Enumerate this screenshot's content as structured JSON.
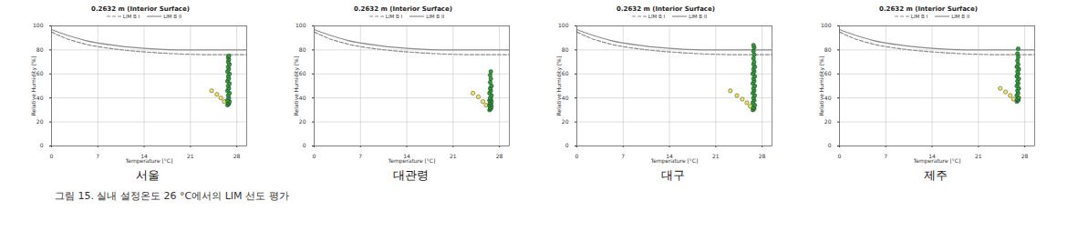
{
  "chart_data": [
    {
      "type": "scatter",
      "title": "0.2632 m (Interior Surface)",
      "caption": "서울",
      "x_label": "Temperature [°C]",
      "y_label": "Relative Humidity [%]",
      "xlim": [
        0,
        29.5
      ],
      "xticks": [
        0,
        7,
        14,
        21,
        28
      ],
      "ylim": [
        0,
        100
      ],
      "yticks": [
        0,
        20,
        40,
        60,
        80,
        100
      ],
      "grid": true,
      "legend": "top",
      "series": [
        {
          "name": "LIM B I",
          "type": "line",
          "line_style": "dashed",
          "color": "#8c8c8c",
          "x": [
            0,
            2,
            5,
            10,
            15,
            20,
            25,
            29.5
          ],
          "values": [
            95,
            90,
            85,
            80.5,
            78,
            76.5,
            76,
            76
          ]
        },
        {
          "name": "LIM B II",
          "type": "line",
          "line_style": "solid",
          "color": "#8c8c8c",
          "x": [
            0,
            2,
            5,
            10,
            15,
            20,
            25,
            29.5
          ],
          "values": [
            97,
            93,
            88,
            83.5,
            81,
            80,
            80,
            80
          ]
        },
        {
          "type": "scatter",
          "color": "#f2e35a",
          "x": [
            24.2,
            25.0,
            25.6,
            26.1
          ],
          "values": [
            46,
            43,
            40,
            37
          ]
        },
        {
          "type": "scatter",
          "color": "#2e9e3a",
          "x": [
            26.6,
            26.8,
            26.7,
            26.9,
            26.6,
            26.8,
            26.7,
            26.9,
            26.6,
            26.8,
            26.7,
            26.9,
            26.6,
            26.8,
            26.7,
            26.9,
            26.6,
            26.8,
            26.7,
            26.9,
            26.7,
            26.8,
            26.7,
            26.8
          ],
          "values": [
            34,
            35,
            36,
            37,
            38,
            40,
            42,
            44,
            46,
            48,
            50,
            52,
            54,
            56,
            58,
            60,
            62,
            64,
            66,
            68,
            70,
            72,
            74,
            75
          ]
        }
      ]
    },
    {
      "type": "scatter",
      "title": "0.2632 m (Interior Surface)",
      "caption": "대관령",
      "x_label": "Temperature [°C]",
      "y_label": "Relative Humidity [%]",
      "xlim": [
        0,
        29.5
      ],
      "xticks": [
        0,
        7,
        14,
        21,
        28
      ],
      "ylim": [
        0,
        100
      ],
      "yticks": [
        0,
        20,
        40,
        60,
        80,
        100
      ],
      "grid": true,
      "legend": "top",
      "series": [
        {
          "name": "LIM B I",
          "type": "line",
          "line_style": "dashed",
          "color": "#8c8c8c",
          "x": [
            0,
            2,
            5,
            10,
            15,
            20,
            25,
            29.5
          ],
          "values": [
            95,
            90,
            85,
            80.5,
            78,
            76.5,
            76,
            76
          ]
        },
        {
          "name": "LIM B II",
          "type": "line",
          "line_style": "solid",
          "color": "#8c8c8c",
          "x": [
            0,
            2,
            5,
            10,
            15,
            20,
            25,
            29.5
          ],
          "values": [
            97,
            93,
            88,
            83.5,
            81,
            80,
            80,
            80
          ]
        },
        {
          "type": "scatter",
          "color": "#f2e35a",
          "x": [
            24.0,
            24.8,
            25.5,
            26.0
          ],
          "values": [
            44,
            41,
            37,
            34
          ]
        },
        {
          "type": "scatter",
          "color": "#2e9e3a",
          "x": [
            26.5,
            26.7,
            26.6,
            26.8,
            26.5,
            26.7,
            26.6,
            26.8,
            26.5,
            26.7,
            26.6,
            26.8,
            26.5,
            26.7,
            26.6,
            26.8,
            26.6,
            26.7,
            26.6,
            26.7
          ],
          "values": [
            30,
            31,
            32,
            33,
            34,
            35,
            36,
            37,
            38,
            39,
            40,
            42,
            44,
            46,
            48,
            50,
            53,
            56,
            59,
            62
          ]
        }
      ]
    },
    {
      "type": "scatter",
      "title": "0.2632 m (Interior Surface)",
      "caption": "대구",
      "x_label": "Temperature [°C]",
      "y_label": "Relative Humidity [%]",
      "xlim": [
        0,
        29.5
      ],
      "xticks": [
        0,
        7,
        14,
        21,
        28
      ],
      "ylim": [
        0,
        100
      ],
      "yticks": [
        0,
        20,
        40,
        60,
        80,
        100
      ],
      "grid": true,
      "legend": "top",
      "series": [
        {
          "name": "LIM B I",
          "type": "line",
          "line_style": "dashed",
          "color": "#8c8c8c",
          "x": [
            0,
            2,
            5,
            10,
            15,
            20,
            25,
            29.5
          ],
          "values": [
            95,
            90,
            85,
            80.5,
            78,
            76.5,
            76,
            76
          ]
        },
        {
          "name": "LIM B II",
          "type": "line",
          "line_style": "solid",
          "color": "#8c8c8c",
          "x": [
            0,
            2,
            5,
            10,
            15,
            20,
            25,
            29.5
          ],
          "values": [
            97,
            93,
            88,
            83.5,
            81,
            80,
            80,
            80
          ]
        },
        {
          "type": "scatter",
          "color": "#f2e35a",
          "x": [
            23.2,
            24.2,
            25.0,
            25.7,
            26.2
          ],
          "values": [
            46,
            42,
            39,
            36,
            33
          ]
        },
        {
          "type": "scatter",
          "color": "#2e9e3a",
          "x": [
            26.6,
            26.8,
            26.7,
            26.9,
            26.6,
            26.8,
            26.7,
            26.9,
            26.6,
            26.8,
            26.7,
            26.9,
            26.6,
            26.8,
            26.7,
            26.9,
            26.6,
            26.8,
            26.7,
            26.9,
            26.7,
            26.8,
            26.7,
            26.8,
            26.7,
            26.8,
            26.7
          ],
          "values": [
            30,
            31,
            32,
            34,
            36,
            38,
            40,
            42,
            44,
            46,
            48,
            50,
            52,
            54,
            56,
            58,
            60,
            62,
            64,
            66,
            68,
            70,
            73,
            76,
            79,
            82,
            84
          ]
        }
      ]
    },
    {
      "type": "scatter",
      "title": "0.2632 m (Interior Surface)",
      "caption": "제주",
      "x_label": "Temperature [°C]",
      "y_label": "Relative Humidity [%]",
      "xlim": [
        0,
        29.5
      ],
      "xticks": [
        0,
        7,
        14,
        21,
        28
      ],
      "ylim": [
        0,
        100
      ],
      "yticks": [
        0,
        20,
        40,
        60,
        80,
        100
      ],
      "grid": true,
      "legend": "top",
      "series": [
        {
          "name": "LIM B I",
          "type": "line",
          "line_style": "dashed",
          "color": "#8c8c8c",
          "x": [
            0,
            2,
            5,
            10,
            15,
            20,
            25,
            29.5
          ],
          "values": [
            95,
            90,
            85,
            80.5,
            78,
            76.5,
            76,
            76
          ]
        },
        {
          "name": "LIM B II",
          "type": "line",
          "line_style": "solid",
          "color": "#8c8c8c",
          "x": [
            0,
            2,
            5,
            10,
            15,
            20,
            25,
            29.5
          ],
          "values": [
            97,
            93,
            88,
            83.5,
            81,
            80,
            80,
            80
          ]
        },
        {
          "type": "scatter",
          "color": "#f2e35a",
          "x": [
            24.3,
            25.1,
            25.8,
            26.3
          ],
          "values": [
            48,
            45,
            42,
            39
          ]
        },
        {
          "type": "scatter",
          "color": "#2e9e3a",
          "x": [
            26.8,
            27.0,
            26.9,
            27.1,
            26.8,
            27.0,
            26.9,
            27.1,
            26.8,
            27.0,
            26.9,
            27.1,
            26.8,
            27.0,
            26.9,
            27.1,
            26.8,
            27.0,
            26.9,
            27.0,
            26.9,
            27.0
          ],
          "values": [
            37,
            38,
            39,
            40,
            42,
            44,
            46,
            48,
            50,
            52,
            54,
            56,
            58,
            60,
            62,
            64,
            66,
            68,
            71,
            74,
            77,
            81
          ]
        }
      ]
    }
  ],
  "caption": "그림 15. 실내 설정온도 26 °C에서의 LIM 선도 평가"
}
